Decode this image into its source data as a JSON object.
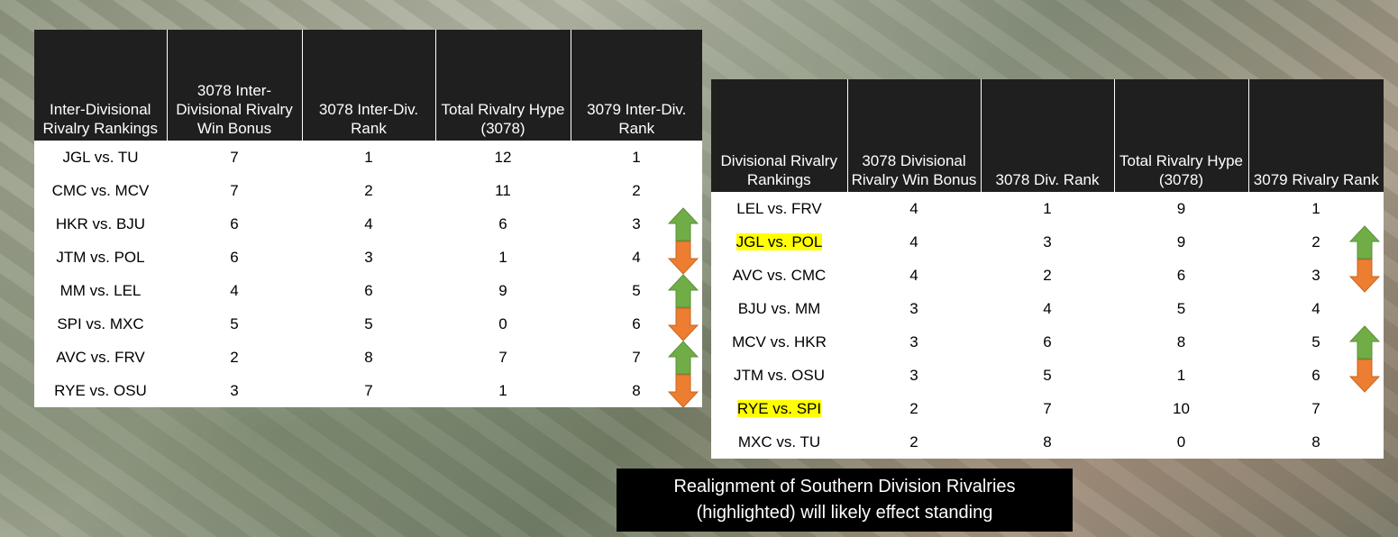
{
  "left_table": {
    "header": [
      "Inter-Divisional Rivalry Rankings",
      "3078 Inter-Divisional Rivalry Win Bonus",
      "3078 Inter-Div. Rank",
      "Total Rivalry Hype (3078)",
      "3079 Inter-Div. Rank"
    ],
    "rows": [
      [
        "JGL vs. TU",
        7,
        1,
        12,
        1
      ],
      [
        "CMC vs. MCV",
        7,
        2,
        11,
        2
      ],
      [
        "HKR vs. BJU",
        6,
        4,
        6,
        3
      ],
      [
        "JTM vs. POL",
        6,
        3,
        1,
        4
      ],
      [
        "MM vs. LEL",
        4,
        6,
        9,
        5
      ],
      [
        "SPI vs. MXC",
        5,
        5,
        0,
        6
      ],
      [
        "AVC vs. FRV",
        2,
        8,
        7,
        7
      ],
      [
        "RYE vs. OSU",
        3,
        7,
        1,
        8
      ]
    ]
  },
  "right_table": {
    "header": [
      "Divisional Rivalry Rankings",
      "3078 Divisional Rivalry Win Bonus",
      "3078 Div. Rank",
      "Total Rivalry Hype (3078)",
      "3079 Rivalry Rank"
    ],
    "rows": [
      [
        "LEL vs. FRV",
        4,
        1,
        9,
        1
      ],
      [
        "JGL vs. POL",
        4,
        3,
        9,
        2
      ],
      [
        "AVC vs. CMC",
        4,
        2,
        6,
        3
      ],
      [
        "BJU vs. MM",
        3,
        4,
        5,
        4
      ],
      [
        "MCV vs. HKR",
        3,
        6,
        8,
        5
      ],
      [
        "JTM vs. OSU",
        3,
        5,
        1,
        6
      ],
      [
        "RYE vs. SPI",
        2,
        7,
        10,
        7
      ],
      [
        "MXC vs. TU",
        2,
        8,
        0,
        8
      ]
    ]
  },
  "caption": [
    "Realignment of Southern Division Rivalries",
    "(highlighted) will likely effect standing"
  ]
}
